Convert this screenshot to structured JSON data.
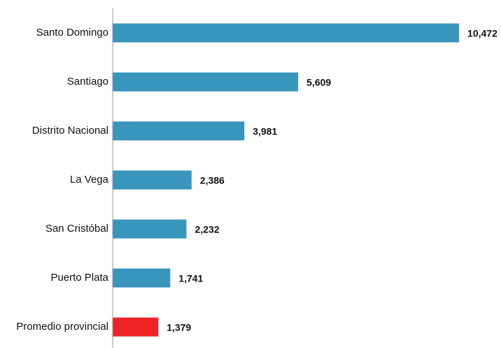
{
  "chart_data": {
    "type": "bar",
    "orientation": "horizontal",
    "categories": [
      "Santo Domingo",
      "Santiago",
      "Distrito Nacional",
      "La Vega",
      "San Cristóbal",
      "Puerto Plata",
      "Promedio provincial"
    ],
    "values": [
      10472,
      5609,
      3981,
      2386,
      2232,
      1741,
      1379
    ],
    "value_labels": [
      "10,472",
      "5,609",
      "3,981",
      "2,386",
      "2,232",
      "1,741",
      "1,379"
    ],
    "colors": [
      "#3a95bc",
      "#3a95bc",
      "#3a95bc",
      "#3a95bc",
      "#3a95bc",
      "#3a95bc",
      "#ee2326"
    ],
    "xlim": [
      0,
      11000
    ]
  }
}
